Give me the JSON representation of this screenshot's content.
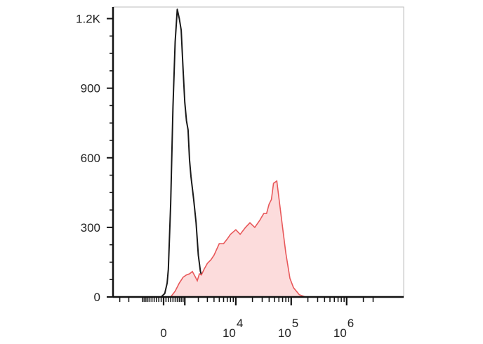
{
  "chart_data": {
    "type": "area",
    "title": "",
    "xlabel": "",
    "ylabel": "",
    "x_scale": "biexponential",
    "ylim": [
      0,
      1250
    ],
    "y_ticks": [
      {
        "value": 0,
        "label": "0"
      },
      {
        "value": 300,
        "label": "300"
      },
      {
        "value": 600,
        "label": "600"
      },
      {
        "value": 900,
        "label": "900"
      },
      {
        "value": 1200,
        "label": "1.2K"
      }
    ],
    "x_ticks": [
      {
        "value": 0,
        "label": "0",
        "sup": ""
      },
      {
        "value": 10000,
        "label": "10",
        "sup": "4"
      },
      {
        "value": 100000,
        "label": "10",
        "sup": "5"
      },
      {
        "value": 1000000,
        "label": "10",
        "sup": "6"
      }
    ],
    "series": [
      {
        "style": "outline",
        "color": "#1a1a1a",
        "x": [
          -100,
          50,
          150,
          200,
          300,
          400,
          500,
          600,
          700,
          800,
          900,
          1000,
          1100,
          1200,
          1300,
          1400,
          1600,
          1800,
          2000,
          2200,
          2500,
          2800,
          3200,
          3600,
          4500,
          6000,
          10000,
          30000
        ],
        "values": [
          0,
          15,
          60,
          120,
          400,
          820,
          1100,
          1240,
          1200,
          1150,
          980,
          840,
          760,
          720,
          590,
          520,
          420,
          320,
          180,
          110,
          70,
          45,
          25,
          15,
          8,
          5,
          3,
          0
        ]
      },
      {
        "style": "filled",
        "color": "#e8585a",
        "fill": "#fcdcdc",
        "x": [
          300,
          500,
          700,
          900,
          1100,
          1300,
          1500,
          1700,
          1900,
          2100,
          2300,
          2600,
          3000,
          3500,
          4000,
          5000,
          6000,
          7000,
          8000,
          10000,
          12000,
          15000,
          18000,
          22000,
          27000,
          32000,
          36000,
          40000,
          44000,
          48000,
          55000,
          62000,
          70000,
          80000,
          95000,
          110000,
          140000,
          180000
        ],
        "values": [
          0,
          25,
          60,
          85,
          95,
          100,
          110,
          90,
          70,
          100,
          95,
          120,
          145,
          160,
          180,
          230,
          230,
          250,
          270,
          290,
          270,
          300,
          320,
          300,
          330,
          360,
          360,
          400,
          420,
          490,
          500,
          400,
          300,
          190,
          80,
          40,
          10,
          0
        ]
      }
    ]
  }
}
